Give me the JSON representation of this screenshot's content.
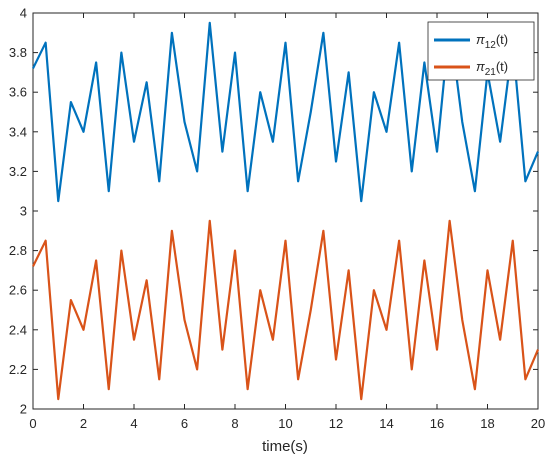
{
  "chart_data": {
    "type": "line",
    "title": "",
    "xlabel": "time(s)",
    "ylabel": "",
    "xlim": [
      0,
      20
    ],
    "ylim": [
      2,
      4
    ],
    "xticks": [
      "0",
      "2",
      "4",
      "6",
      "8",
      "10",
      "12",
      "14",
      "16",
      "18",
      "20"
    ],
    "yticks": [
      "2",
      "2.2",
      "2.4",
      "2.6",
      "2.8",
      "3",
      "3.2",
      "3.4",
      "3.6",
      "3.8",
      "4"
    ],
    "grid": false,
    "legend_position": "top-right",
    "series": [
      {
        "name": "π12(t)",
        "legend_base": "π",
        "legend_sub": "12",
        "legend_suffix": "(t)",
        "color": "#0072BD",
        "x": [
          0.0,
          0.5,
          1.0,
          1.5,
          2.0,
          2.5,
          3.0,
          3.5,
          4.0,
          4.5,
          5.0,
          5.5,
          6.0,
          6.5,
          7.0,
          7.5,
          8.0,
          8.5,
          9.0,
          9.5,
          10.0,
          10.5,
          11.0,
          11.5,
          12.0,
          12.5,
          13.0,
          13.5,
          14.0,
          14.5,
          15.0,
          15.5,
          16.0,
          16.5,
          17.0,
          17.5,
          18.0,
          18.5,
          19.0,
          19.5,
          20.0
        ],
        "y": [
          3.72,
          3.85,
          3.05,
          3.55,
          3.4,
          3.75,
          3.1,
          3.8,
          3.35,
          3.65,
          3.15,
          3.9,
          3.45,
          3.2,
          3.95,
          3.3,
          3.8,
          3.1,
          3.6,
          3.35,
          3.85,
          3.15,
          3.5,
          3.9,
          3.25,
          3.7,
          3.05,
          3.6,
          3.4,
          3.85,
          3.2,
          3.75,
          3.3,
          3.95,
          3.45,
          3.1,
          3.7,
          3.35,
          3.85,
          3.15,
          3.3
        ]
      },
      {
        "name": "π21(t)",
        "legend_base": "π",
        "legend_sub": "21",
        "legend_suffix": "(t)",
        "color": "#D95319",
        "x": [
          0.0,
          0.5,
          1.0,
          1.5,
          2.0,
          2.5,
          3.0,
          3.5,
          4.0,
          4.5,
          5.0,
          5.5,
          6.0,
          6.5,
          7.0,
          7.5,
          8.0,
          8.5,
          9.0,
          9.5,
          10.0,
          10.5,
          11.0,
          11.5,
          12.0,
          12.5,
          13.0,
          13.5,
          14.0,
          14.5,
          15.0,
          15.5,
          16.0,
          16.5,
          17.0,
          17.5,
          18.0,
          18.5,
          19.0,
          19.5,
          20.0
        ],
        "y": [
          2.72,
          2.85,
          2.05,
          2.55,
          2.4,
          2.75,
          2.1,
          2.8,
          2.35,
          2.65,
          2.15,
          2.9,
          2.45,
          2.2,
          2.95,
          2.3,
          2.8,
          2.1,
          2.6,
          2.35,
          2.85,
          2.15,
          2.5,
          2.9,
          2.25,
          2.7,
          2.05,
          2.6,
          2.4,
          2.85,
          2.2,
          2.75,
          2.3,
          2.95,
          2.45,
          2.1,
          2.7,
          2.35,
          2.85,
          2.15,
          2.3
        ]
      }
    ]
  }
}
